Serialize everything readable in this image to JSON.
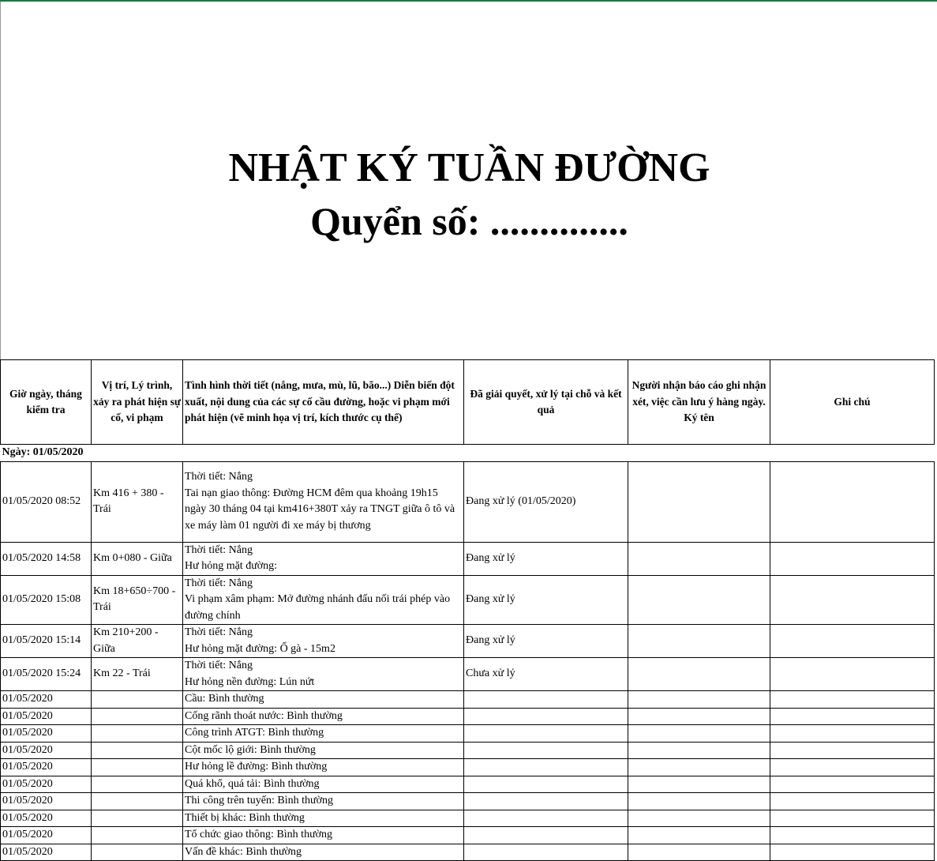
{
  "header": {
    "title": "NHẬT KÝ TUẦN ĐƯỜNG",
    "subtitle": "Quyển số: .............."
  },
  "table": {
    "columns": [
      "Giờ ngày, tháng kiểm tra",
      "Vị trí, Lý trình, xảy ra phát hiện sự cố, vi phạm",
      "Tình hình thời tiết (nắng, mưa, mù, lũ, bão...) Diễn biến đột xuất, nội dung của các sự cố cầu đường, hoặc vi phạm mới phát hiện (vẽ minh họa vị trí, kích thước cụ thể)",
      "Đã giải quyết, xử lý tại chỗ và kết quả",
      "Người nhận báo cáo ghi nhận xét, việc cần lưu ý hàng ngày.\nKý tên",
      "Ghi  chú"
    ],
    "day_label": "Ngày: 01/05/2020",
    "rows": [
      {
        "time": "01/05/2020 08:52",
        "location": "Km 416 + 380 - Trái",
        "details": "Thời tiết: Nắng\nTai nạn giao thông: Đường HCM đêm qua khoảng 19h15 ngày 30 tháng 04  tại km416+380T xảy ra TNGT giữa ô tô và xe máy làm 01 người đi xe máy bị thương",
        "status": "Đang xử lý (01/05/2020)"
      },
      {
        "time": "01/05/2020 14:58",
        "location": "Km 0+080 - Giữa",
        "details": "Thời tiết: Nắng\nHư hỏng mặt đường:",
        "status": "Đang xử lý"
      },
      {
        "time": "01/05/2020 15:08",
        "location": "Km 18+650÷700 - Trái",
        "details": "Thời tiết: Nắng\nVi phạm xâm phạm: Mở đường nhánh đấu nối trái phép vào đường chính",
        "status": "Đang xử lý"
      },
      {
        "time": "01/05/2020 15:14",
        "location": "Km 210+200 - Giữa",
        "details": "Thời tiết: Nắng\nHư hỏng mặt đường: Ổ gà - 15m2",
        "status": "Đang xử lý"
      },
      {
        "time": "01/05/2020 15:24",
        "location": "Km 22 - Trái",
        "details": "Thời tiết: Nắng\nHư hỏng nền đường: Lún nứt",
        "status": "Chưa xử lý"
      },
      {
        "time": "01/05/2020",
        "details": "Cầu: Bình thường"
      },
      {
        "time": "01/05/2020",
        "details": "Cống rãnh thoát nước: Bình thường"
      },
      {
        "time": "01/05/2020",
        "details": "Công trình ATGT: Bình thường"
      },
      {
        "time": "01/05/2020",
        "details": "Cột mốc lộ giới: Bình thường"
      },
      {
        "time": "01/05/2020",
        "details": "Hư hỏng lề đường: Bình thường"
      },
      {
        "time": "01/05/2020",
        "details": "Quá khổ, quá tải: Bình thường"
      },
      {
        "time": "01/05/2020",
        "details": "Thi công trên tuyến: Bình thường"
      },
      {
        "time": "01/05/2020",
        "details": "Thiết bị khác: Bình thường"
      },
      {
        "time": "01/05/2020",
        "details": "Tổ chức giao thông: Bình thường"
      },
      {
        "time": "01/05/2020",
        "details": "Vấn đề khác: Bình thường"
      }
    ]
  }
}
